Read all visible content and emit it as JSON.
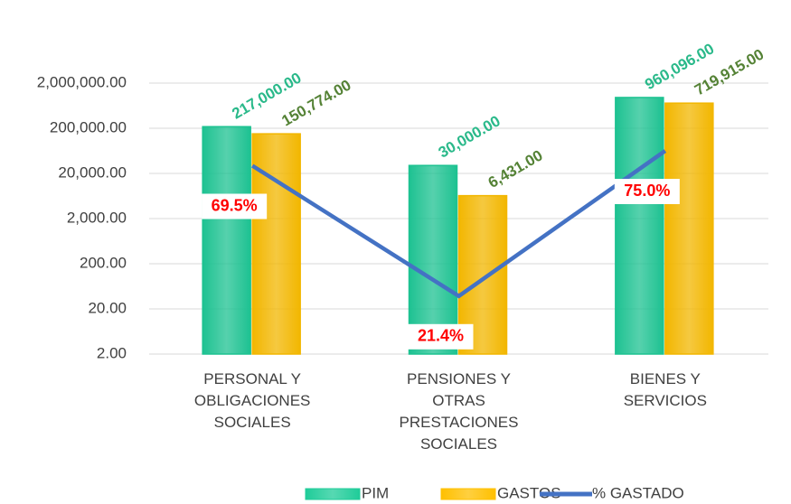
{
  "chart_data": {
    "type": "bar",
    "categories": [
      "PERSONAL Y OBLIGACIONES SOCIALES",
      "PENSIONES Y OTRAS PRESTACIONES SOCIALES",
      "BIENES Y SERVICIOS"
    ],
    "series": [
      {
        "name": "PIM",
        "type": "bar",
        "color": "#1fcc99",
        "label_color": "#2ab98a",
        "values": [
          217000,
          30000,
          960096
        ],
        "value_labels": [
          "217,000.00",
          "30,000.00",
          "960,096.00"
        ]
      },
      {
        "name": "GASTOS",
        "type": "bar",
        "color": "#ffc000",
        "label_color": "#548235",
        "values": [
          150774,
          6431,
          719915
        ],
        "value_labels": [
          "150,774.00",
          "6,431.00",
          "719,915.00"
        ]
      },
      {
        "name": "% GASTADO",
        "type": "line",
        "axis": "y2",
        "color": "#4472c4",
        "label_color": "#ff0000",
        "values": [
          69.5,
          21.4,
          75.0
        ],
        "value_labels": [
          "69.5%",
          "21.4%",
          "75.0%"
        ]
      }
    ],
    "log_scale": true,
    "ylim": [
      2,
      2000000
    ],
    "yticks": [
      {
        "value": 2,
        "label": "2.00"
      },
      {
        "value": 20,
        "label": "20.00"
      },
      {
        "value": 200,
        "label": "200.00"
      },
      {
        "value": 2000,
        "label": "2,000.00"
      },
      {
        "value": 20000,
        "label": "20,000.00"
      },
      {
        "value": 200000,
        "label": "200,000.00"
      },
      {
        "value": 2000000,
        "label": "2,000,000.00"
      }
    ],
    "y2lim": [
      0,
      100
    ],
    "grid": true,
    "legend": "bottom"
  }
}
